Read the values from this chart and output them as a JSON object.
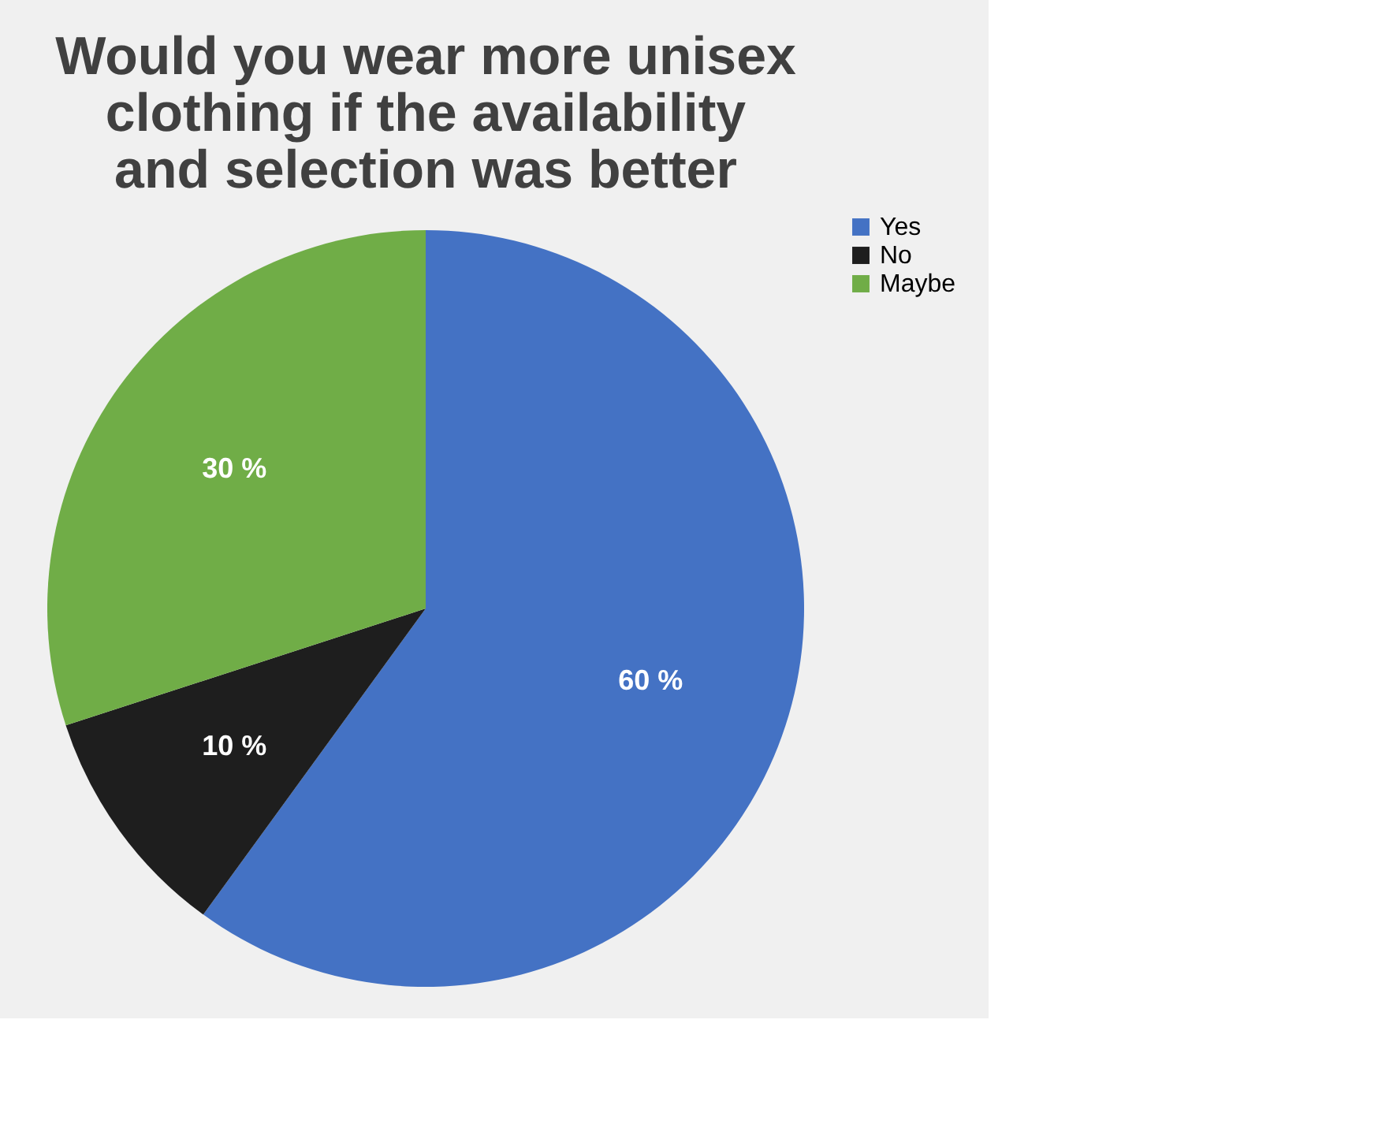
{
  "chart_data": {
    "type": "pie",
    "title": "Would you wear more unisex clothing if the availability and selection was better",
    "categories": [
      "Yes",
      "No",
      "Maybe"
    ],
    "values": [
      60,
      10,
      30
    ],
    "colors": [
      "#4472c4",
      "#1e1e1e",
      "#70ad47"
    ],
    "value_labels": [
      "60 %",
      "10 %",
      "30 %"
    ],
    "legend": "right"
  }
}
